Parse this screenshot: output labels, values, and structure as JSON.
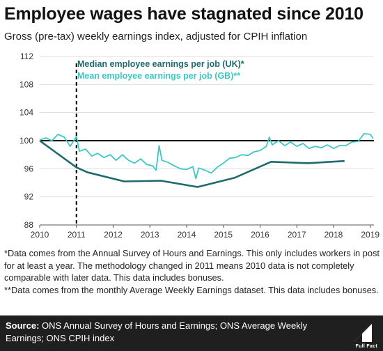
{
  "title": "Employee wages have stagnated since 2010",
  "subtitle": "Gross (pre-tax) weekly earnings index, adjusted for CPIH inflation",
  "colors": {
    "median": "#1f6b6b",
    "mean": "#3cc8c4",
    "reference": "#000000",
    "grid": "#dddddd",
    "footer_bg": "#1f1f1f"
  },
  "chart_data": {
    "type": "line",
    "xlim": [
      2010,
      2019.1
    ],
    "ylim": [
      88,
      112
    ],
    "x_ticks": [
      "2010",
      "2011",
      "2012",
      "2013",
      "2014",
      "2015",
      "2016",
      "2017",
      "2018",
      "2019"
    ],
    "y_ticks": [
      "88",
      "92",
      "96",
      "100",
      "104",
      "108",
      "112"
    ],
    "grid": true,
    "reference_line_y": 100,
    "vertical_marker_x": 2011,
    "legend_position": "top-left",
    "series": [
      {
        "name": "Median employee earnings per job (UK)*",
        "color": "#1f6b6b",
        "points": [
          [
            2010,
            100
          ],
          [
            2011,
            96.2
          ],
          [
            2011.3,
            95.5
          ],
          [
            2012.3,
            94.2
          ],
          [
            2013.3,
            94.3
          ],
          [
            2014.3,
            93.4
          ],
          [
            2015.3,
            94.7
          ],
          [
            2016.3,
            97.0
          ],
          [
            2017.3,
            96.8
          ],
          [
            2018.3,
            97.1
          ]
        ]
      },
      {
        "name": "Mean employee earnings per job (GB)**",
        "color": "#3cc8c4",
        "points": [
          [
            2010,
            100.1
          ],
          [
            2010.17,
            100.4
          ],
          [
            2010.33,
            100.0
          ],
          [
            2010.5,
            100.9
          ],
          [
            2010.67,
            100.5
          ],
          [
            2010.83,
            99.2
          ],
          [
            2011,
            100.6
          ],
          [
            2011.08,
            98.5
          ],
          [
            2011.25,
            98.8
          ],
          [
            2011.42,
            97.8
          ],
          [
            2011.58,
            98.2
          ],
          [
            2011.75,
            97.6
          ],
          [
            2011.92,
            98.0
          ],
          [
            2012.08,
            97.2
          ],
          [
            2012.25,
            98.0
          ],
          [
            2012.42,
            97.2
          ],
          [
            2012.58,
            96.8
          ],
          [
            2012.75,
            97.4
          ],
          [
            2012.92,
            96.6
          ],
          [
            2013.08,
            96.4
          ],
          [
            2013.17,
            95.8
          ],
          [
            2013.25,
            99.3
          ],
          [
            2013.33,
            97.2
          ],
          [
            2013.5,
            96.9
          ],
          [
            2013.67,
            96.4
          ],
          [
            2013.83,
            96.0
          ],
          [
            2014,
            95.9
          ],
          [
            2014.17,
            96.3
          ],
          [
            2014.25,
            94.6
          ],
          [
            2014.33,
            96.1
          ],
          [
            2014.5,
            95.8
          ],
          [
            2014.67,
            95.4
          ],
          [
            2014.83,
            96.2
          ],
          [
            2015,
            96.8
          ],
          [
            2015.17,
            97.5
          ],
          [
            2015.33,
            97.6
          ],
          [
            2015.5,
            98.0
          ],
          [
            2015.67,
            97.9
          ],
          [
            2015.83,
            98.4
          ],
          [
            2016,
            98.6
          ],
          [
            2016.17,
            99.2
          ],
          [
            2016.25,
            100.5
          ],
          [
            2016.33,
            99.4
          ],
          [
            2016.5,
            100.0
          ],
          [
            2016.67,
            99.3
          ],
          [
            2016.83,
            99.8
          ],
          [
            2017,
            99.2
          ],
          [
            2017.17,
            99.6
          ],
          [
            2017.33,
            98.9
          ],
          [
            2017.5,
            99.2
          ],
          [
            2017.67,
            99.0
          ],
          [
            2017.83,
            99.4
          ],
          [
            2018,
            98.9
          ],
          [
            2018.17,
            99.3
          ],
          [
            2018.33,
            99.3
          ],
          [
            2018.5,
            99.8
          ],
          [
            2018.67,
            99.9
          ],
          [
            2018.83,
            101.0
          ],
          [
            2019,
            100.9
          ],
          [
            2019.08,
            100.3
          ]
        ]
      }
    ]
  },
  "notes": [
    "*Data comes from the Annual Survey of Hours and Earnings. This only includes workers in post for at least a year. The methodology changed in 2011 means 2010 data is not completely comparable with later data.  This data includes bonuses.",
    "**Data comes from the monthly Average Weekly Earnings dataset. This data includes bonuses."
  ],
  "footer": {
    "source_label": "Source:",
    "source_text": " ONS Annual Survey of Hours and Earnings; ONS Average Weekly Earnings; ONS CPIH index",
    "logo_text": "Full Fact",
    "logo_icon": "full-fact-logo"
  }
}
